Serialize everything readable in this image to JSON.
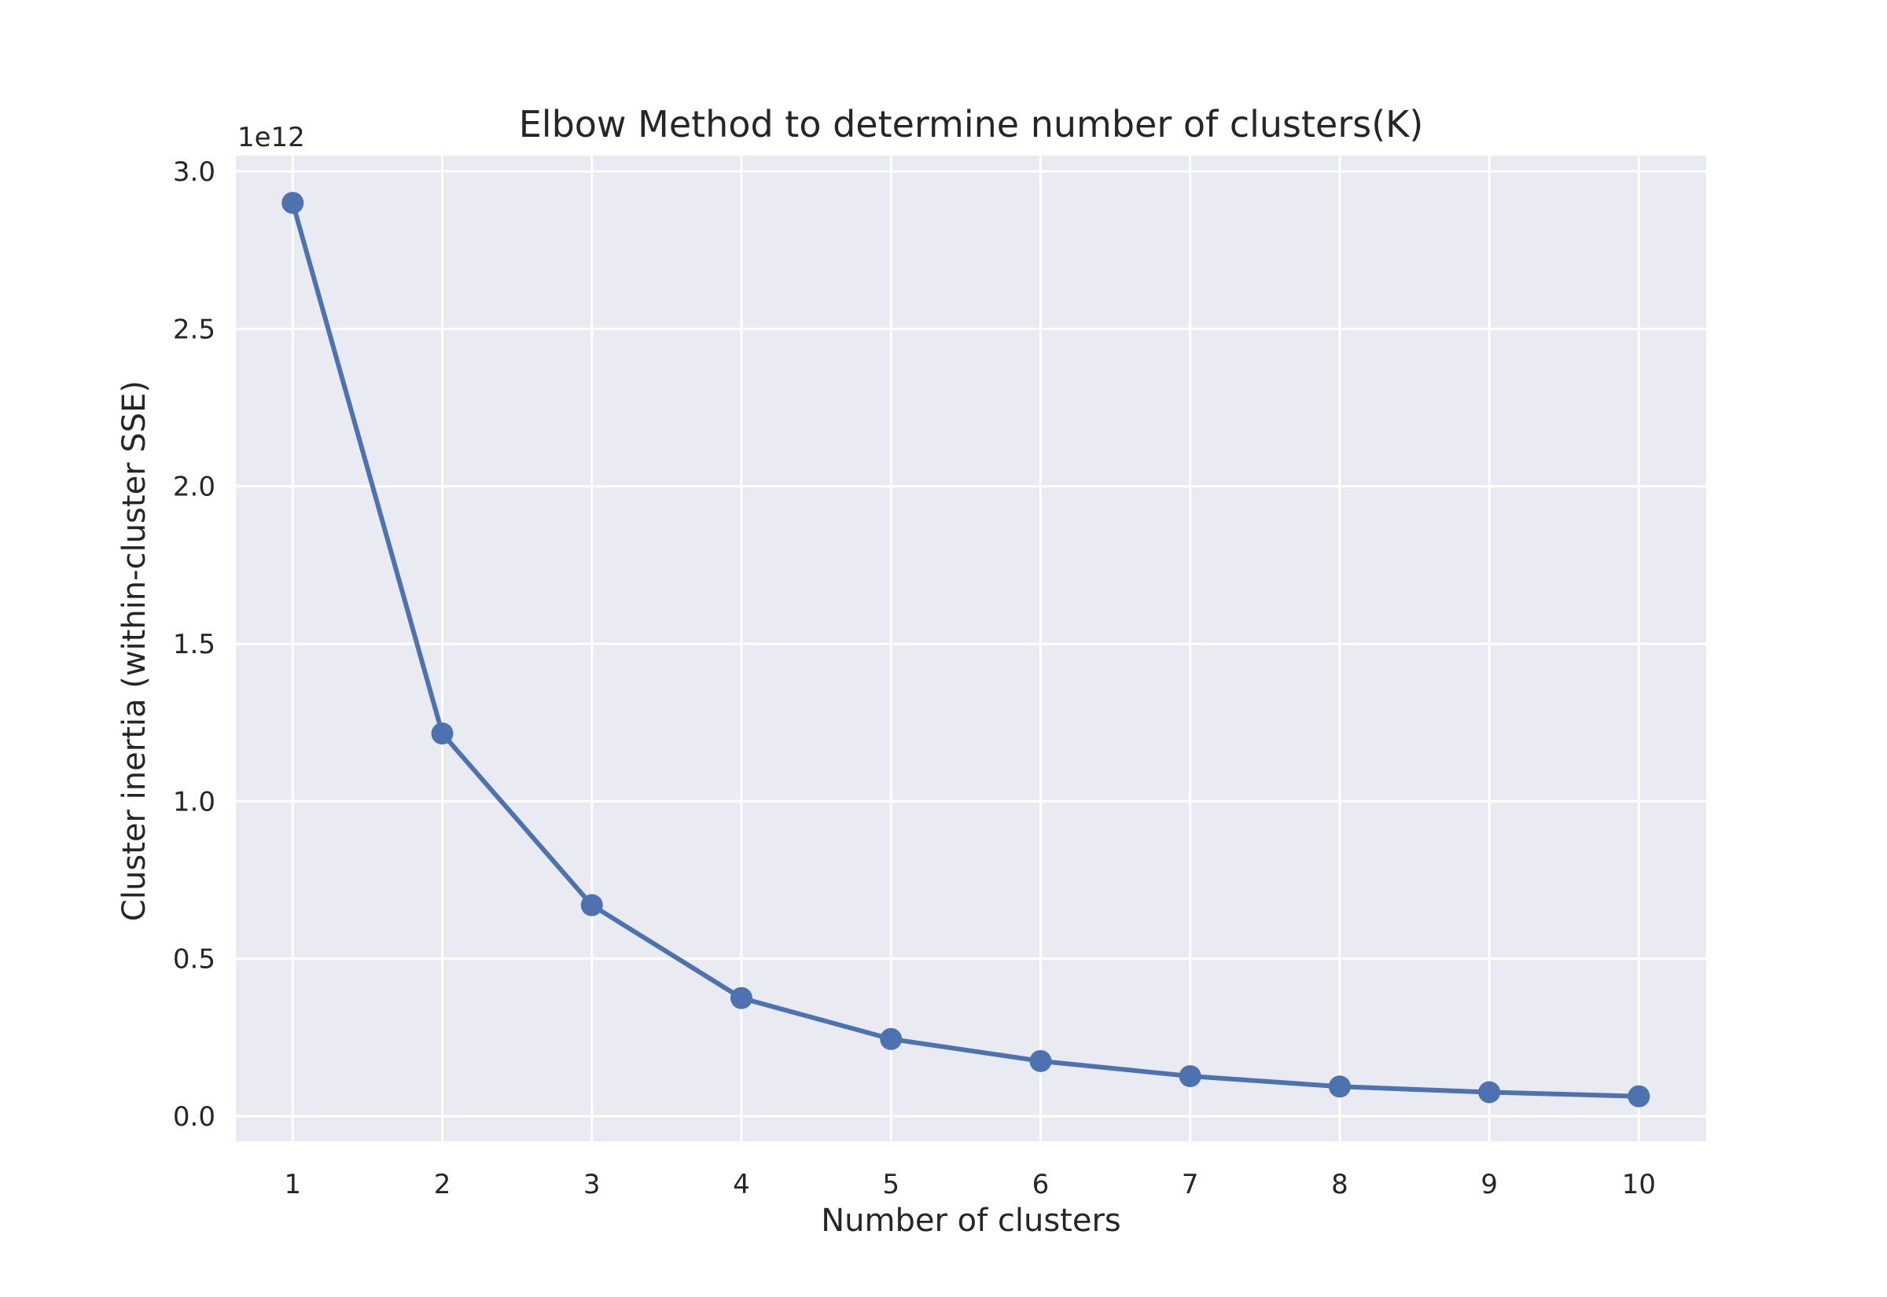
{
  "chart_data": {
    "type": "line",
    "title": "Elbow Method to determine number of clusters(K)",
    "xlabel": "Number of clusters",
    "ylabel": "Cluster inertia (within-cluster SSE)",
    "y_offset_label": "1e12",
    "x": [
      1,
      2,
      3,
      4,
      5,
      6,
      7,
      8,
      9,
      10
    ],
    "xlim": [
      0.62,
      10.45
    ],
    "ylim": [
      -0.08,
      3.05
    ],
    "x_ticks": [
      1,
      2,
      3,
      4,
      5,
      6,
      7,
      8,
      9,
      10
    ],
    "x_tick_labels": [
      "1",
      "2",
      "3",
      "4",
      "5",
      "6",
      "7",
      "8",
      "9",
      "10"
    ],
    "y_ticks": [
      0.0,
      0.5,
      1.0,
      1.5,
      2.0,
      2.5,
      3.0
    ],
    "y_tick_labels": [
      "0.0",
      "0.5",
      "1.0",
      "1.5",
      "2.0",
      "2.5",
      "3.0"
    ],
    "grid": true,
    "legend": "none",
    "series": [
      {
        "values": [
          2.9,
          1.215,
          0.67,
          0.375,
          0.245,
          0.175,
          0.127,
          0.094,
          0.076,
          0.063
        ],
        "color": "#4c72b0",
        "marker": "circle"
      }
    ],
    "background_color": "#eaeaf2",
    "grid_color": "#ffffff"
  }
}
